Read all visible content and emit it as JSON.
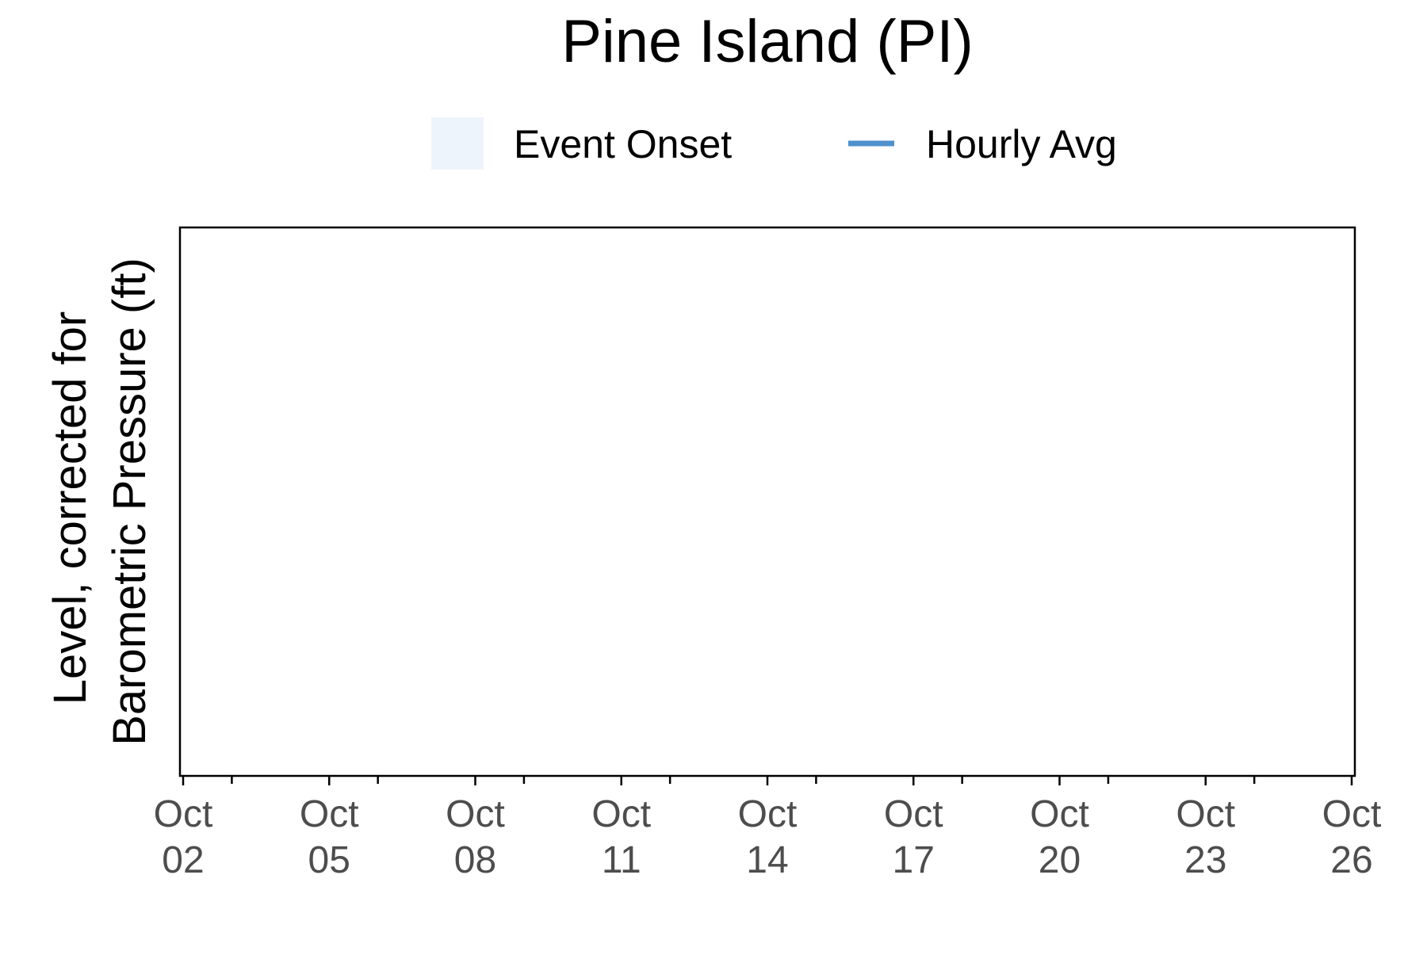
{
  "chart_data": {
    "type": "line",
    "title": "Pine Island (PI)",
    "xlabel": "",
    "ylabel_lines": [
      "Level, corrected for",
      "Barometric Pressure (ft)"
    ],
    "legend": {
      "position": "top",
      "items": [
        {
          "label": "Event Onset",
          "kind": "fill",
          "color": "#eef4fb"
        },
        {
          "label": "Hourly Avg",
          "kind": "line",
          "color": "#4e91cd"
        }
      ]
    },
    "x_axis": {
      "scale": "date",
      "range": [
        "2023-10-02",
        "2023-10-26"
      ],
      "major_ticks": [
        {
          "date": "2023-10-02",
          "label": [
            "Oct",
            "02"
          ]
        },
        {
          "date": "2023-10-05",
          "label": [
            "Oct",
            "05"
          ]
        },
        {
          "date": "2023-10-08",
          "label": [
            "Oct",
            "08"
          ]
        },
        {
          "date": "2023-10-11",
          "label": [
            "Oct",
            "11"
          ]
        },
        {
          "date": "2023-10-14",
          "label": [
            "Oct",
            "14"
          ]
        },
        {
          "date": "2023-10-17",
          "label": [
            "Oct",
            "17"
          ]
        },
        {
          "date": "2023-10-20",
          "label": [
            "Oct",
            "20"
          ]
        },
        {
          "date": "2023-10-23",
          "label": [
            "Oct",
            "23"
          ]
        },
        {
          "date": "2023-10-26",
          "label": [
            "Oct",
            "26"
          ]
        }
      ],
      "minor_ticks": [
        "2023-10-03",
        "2023-10-06",
        "2023-10-09",
        "2023-10-12",
        "2023-10-15",
        "2023-10-18",
        "2023-10-21",
        "2023-10-24"
      ]
    },
    "grid": false,
    "series": [
      {
        "name": "Hourly Avg",
        "x": [],
        "y": []
      }
    ]
  },
  "colors": {
    "axis": "#000000",
    "tick_label": "#4d4d4d",
    "event_onset": "#eef4fb",
    "hourly_avg": "#4e91cd"
  }
}
